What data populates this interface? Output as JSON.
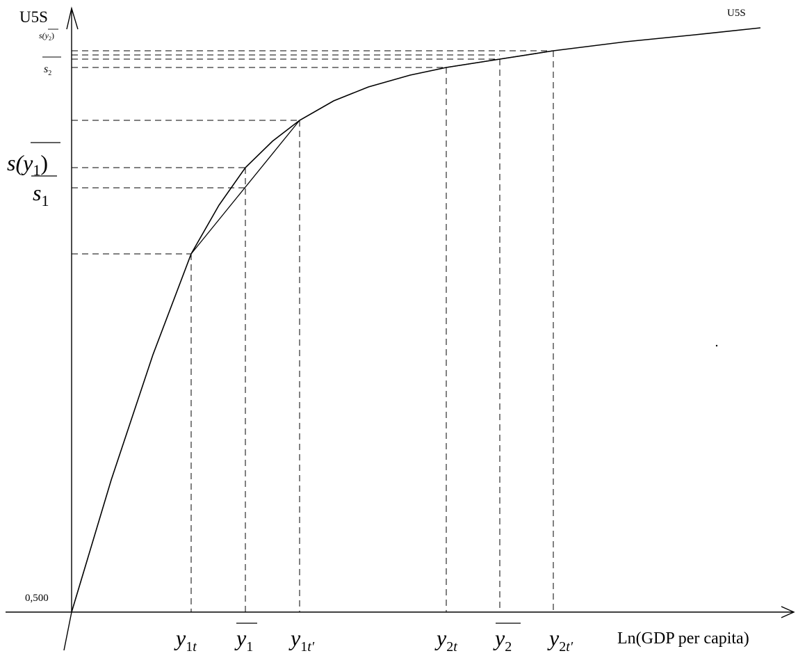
{
  "axes": {
    "y_label": "U5S",
    "x_label": "Ln(GDP per capita)",
    "origin_label": "0,500"
  },
  "curve_label": "U5S",
  "x_marks": {
    "y1t": {
      "base": "y",
      "sub": "1",
      "subsub": "t"
    },
    "y1bar": {
      "base": "y",
      "sub": "1"
    },
    "y1tp": {
      "base": "y",
      "sub": "1",
      "subsub": "t′"
    },
    "y2t": {
      "base": "y",
      "sub": "2",
      "subsub": "t"
    },
    "y2bar": {
      "base": "y",
      "sub": "2"
    },
    "y2tp": {
      "base": "y",
      "sub": "2",
      "subsub": "t′"
    }
  },
  "y_marks": {
    "s_y2bar": {
      "pre": "s(",
      "base": "y",
      "sub": "2",
      "post": ")"
    },
    "s2bar": {
      "base": "s",
      "sub": "2"
    },
    "s_y1bar": {
      "pre": "s(",
      "base": "y",
      "sub": "1",
      "post": ")"
    },
    "s1bar": {
      "base": "s",
      "sub": "1"
    }
  }
}
